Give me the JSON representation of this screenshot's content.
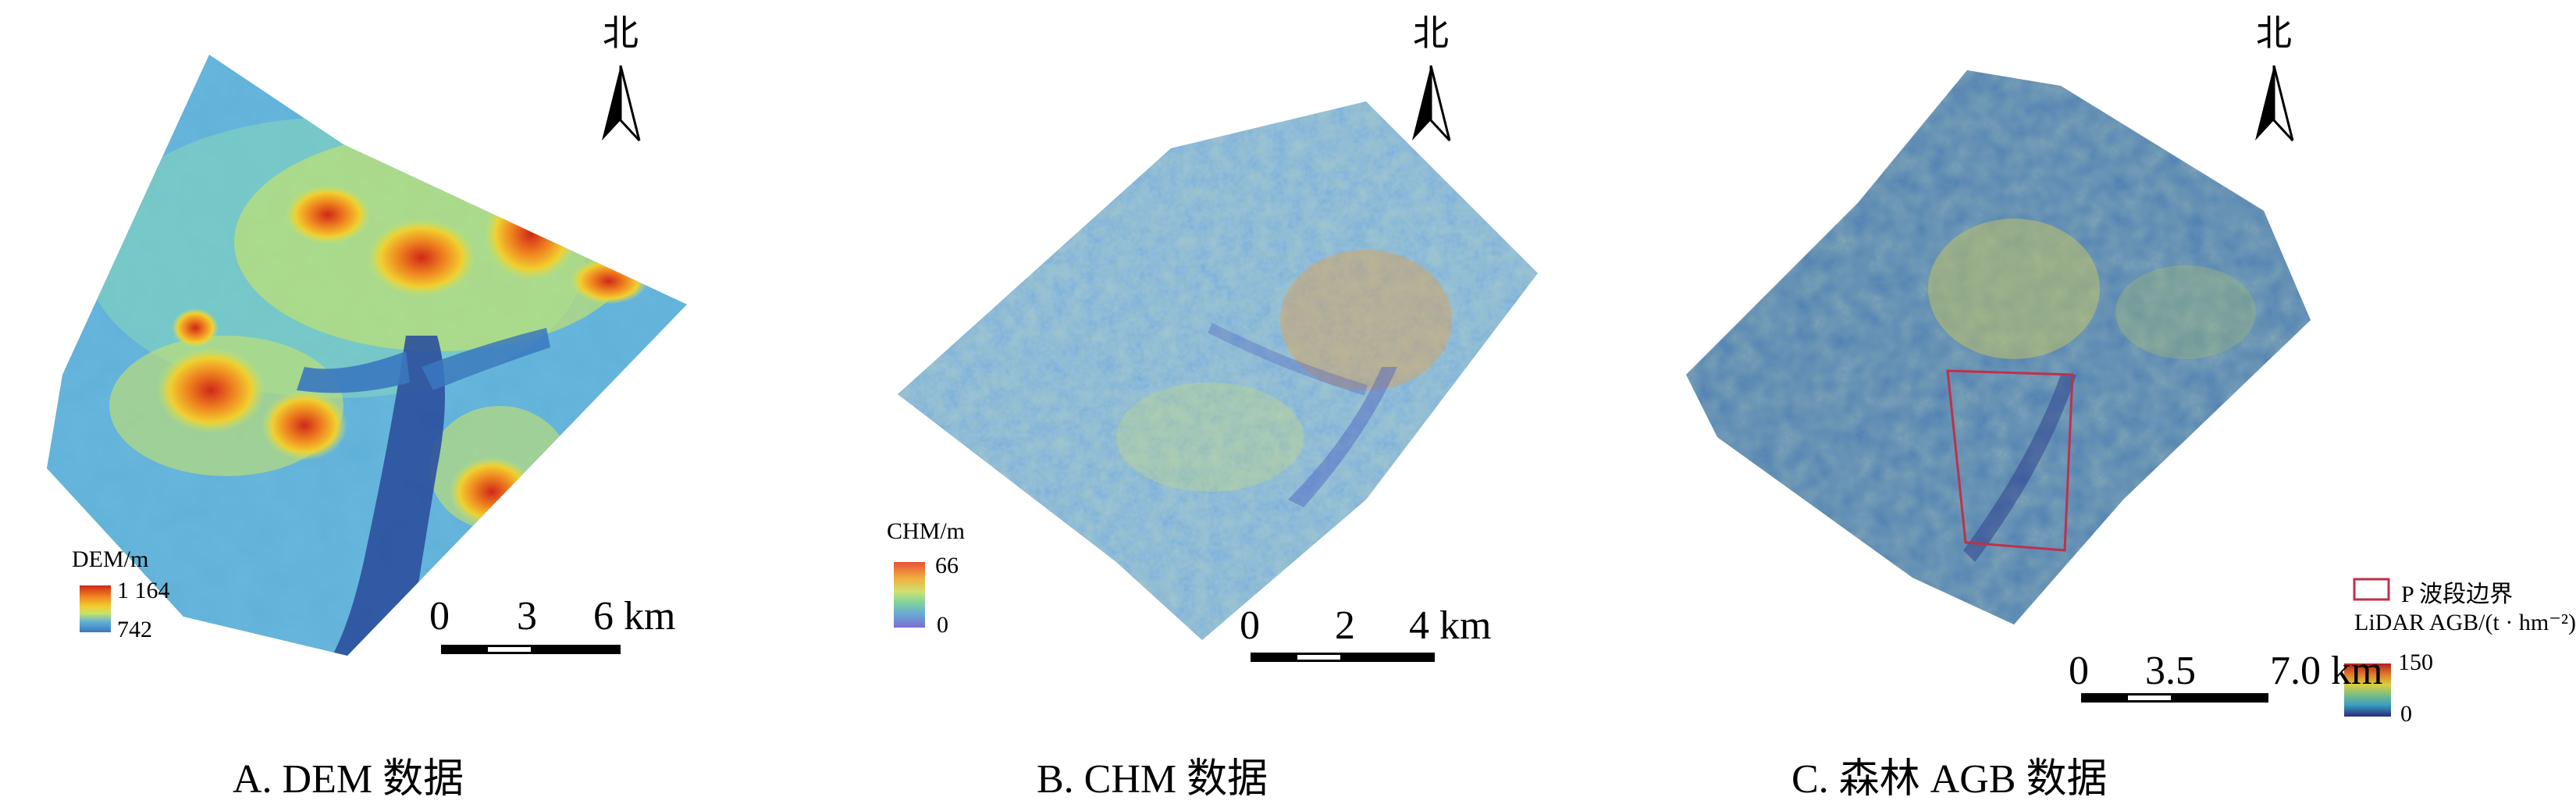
{
  "north_label": "北",
  "panels": {
    "a": {
      "caption": "A. DEM 数据",
      "legend_title": "DEM/m",
      "legend_max": "1 164",
      "legend_min": "742",
      "scale": {
        "t0": "0",
        "t1": "3",
        "t2": "6 km"
      }
    },
    "b": {
      "caption": "B. CHM 数据",
      "legend_title": "CHM/m",
      "legend_max": "66",
      "legend_min": "0",
      "scale": {
        "t0": "0",
        "t1": "2",
        "t2": "4 km"
      }
    },
    "c": {
      "caption": "C. 森林 AGB 数据",
      "boundary_label": "P 波段边界",
      "legend_title": "LiDAR AGB/(t · hm⁻²)",
      "legend_max": "150",
      "legend_min": "0",
      "scale": {
        "t0": "0",
        "t1": "3.5",
        "t2": "7.0 km"
      }
    }
  },
  "colors": {
    "dem_ramp": [
      "#2c4f9c",
      "#3a78c0",
      "#5fb0d8",
      "#7fd0c0",
      "#c6e36a",
      "#f0d030",
      "#f08a20",
      "#d02818"
    ],
    "chm_ramp": [
      "#7b6fd0",
      "#6aa6d6",
      "#7fd3a0",
      "#cfe070",
      "#f0b040",
      "#e8503a"
    ],
    "agb_ramp": [
      "#2a2a7a",
      "#2d5fa8",
      "#3a9ec0",
      "#7fc080",
      "#d8d040",
      "#e07828",
      "#b02020"
    ],
    "boundary": "#c0304a"
  }
}
